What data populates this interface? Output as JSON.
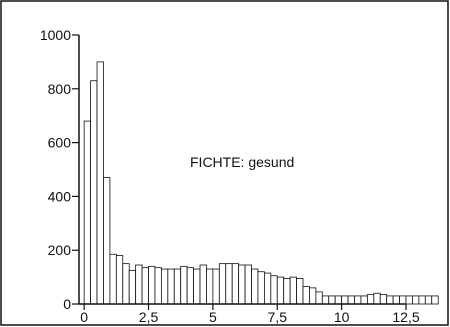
{
  "chart_data": {
    "type": "bar",
    "annotation": "FICHTE: gesund",
    "xlim": [
      -0.2,
      12.5
    ],
    "ylim": [
      0,
      1000
    ],
    "x_ticks": [
      {
        "value": 0,
        "label": "0"
      },
      {
        "value": 2.5,
        "label": "2,5"
      },
      {
        "value": 5,
        "label": "5"
      },
      {
        "value": 7.5,
        "label": "7,5"
      },
      {
        "value": 10,
        "label": "10"
      },
      {
        "value": 12.5,
        "label": "12,5"
      }
    ],
    "y_ticks": [
      {
        "value": 0,
        "label": "0"
      },
      {
        "value": 200,
        "label": "200"
      },
      {
        "value": 400,
        "label": "400"
      },
      {
        "value": 600,
        "label": "600"
      },
      {
        "value": 800,
        "label": "800"
      },
      {
        "value": 1000,
        "label": "1000"
      }
    ],
    "bin_start": 0,
    "bin_width": 0.25,
    "values": [
      680,
      830,
      900,
      470,
      185,
      180,
      150,
      125,
      145,
      135,
      140,
      135,
      130,
      130,
      130,
      140,
      135,
      130,
      145,
      130,
      130,
      150,
      150,
      150,
      145,
      145,
      130,
      120,
      115,
      105,
      100,
      95,
      100,
      95,
      65,
      60,
      45,
      30,
      30,
      30,
      30,
      30,
      30,
      30,
      35,
      40,
      35,
      30,
      30,
      30,
      30,
      30,
      30,
      30,
      30
    ],
    "grid": false,
    "colors": {
      "bar_fill": "#ffffff",
      "bar_stroke": "#111111",
      "axis": "#111111",
      "frame": "#111111"
    }
  }
}
